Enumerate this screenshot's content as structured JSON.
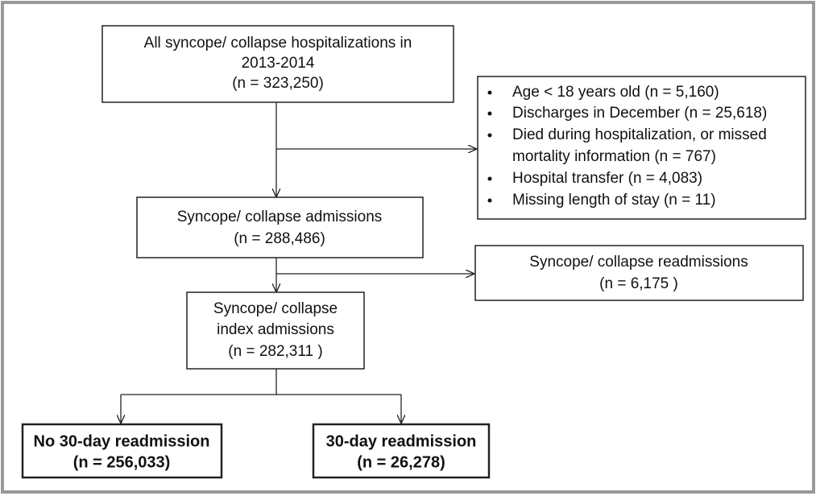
{
  "nodes": [
    {
      "lines": [
        "All syncope/ collapse hospitalizations in",
        "2013-2014",
        "(n = 323,250)"
      ]
    },
    {
      "items": [
        "Age < 18 years old (n = 5,160)",
        "Discharges in December  (n = 25,618)",
        "Died during hospitalization, or missed",
        "mortality information (n = 767)",
        "Hospital transfer (n = 4,083)",
        "Missing length of stay (n = 11)"
      ]
    },
    {
      "lines": [
        "Syncope/ collapse admissions",
        "(n = 288,486)"
      ]
    },
    {
      "lines": [
        "Syncope/ collapse readmissions",
        "(n = 6,175 )"
      ]
    },
    {
      "lines": [
        "Syncope/ collapse",
        "index admissions",
        "(n = 282,311 )"
      ]
    },
    {
      "lines": [
        "No 30-day readmission",
        "(n = 256,033)"
      ]
    },
    {
      "lines": [
        "30-day readmission",
        "(n = 26,278)"
      ]
    }
  ]
}
